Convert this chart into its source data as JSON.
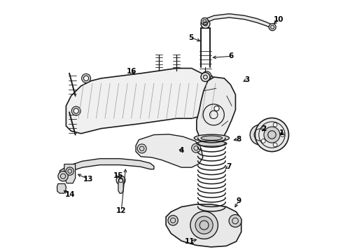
{
  "title": "",
  "bg_color": "#ffffff",
  "line_color": "#1a1a1a",
  "label_color": "#000000",
  "fig_width": 4.9,
  "fig_height": 3.6,
  "dpi": 100
}
